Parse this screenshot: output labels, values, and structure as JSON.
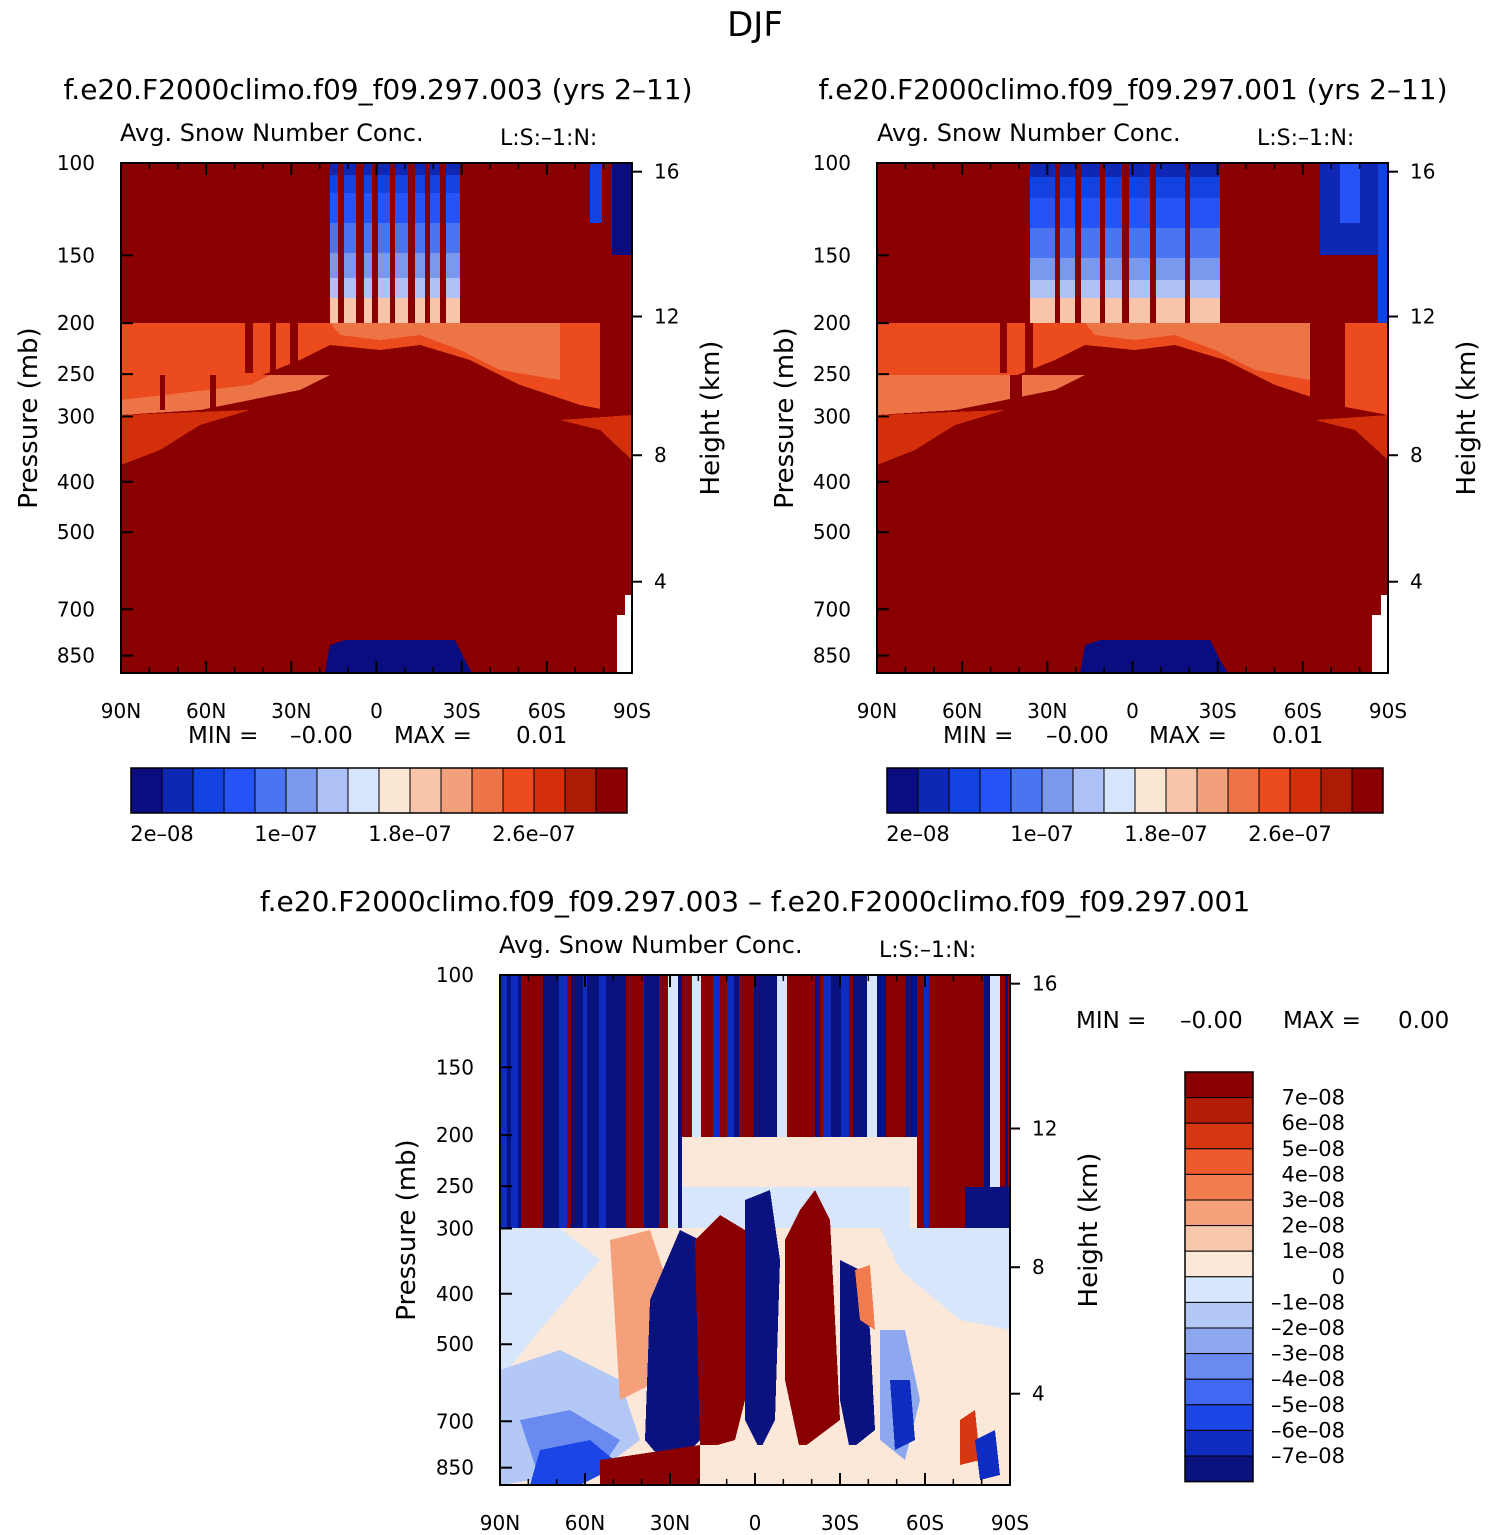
{
  "figure": {
    "season": "DJF"
  },
  "colors": {
    "abs_scale": [
      "#0a0d80",
      "#0e27b4",
      "#1242e0",
      "#2653f5",
      "#4a74f0",
      "#7a98ee",
      "#adc1f6",
      "#d6e5fb",
      "#fbe5d3",
      "#f8c5ab",
      "#f29f7c",
      "#ec7447",
      "#eb4b1d",
      "#d42f0b",
      "#ae1b05",
      "#8a0000"
    ],
    "diff_scale": [
      "#8a0000",
      "#b41d05",
      "#d63610",
      "#ed5a2b",
      "#f07c4f",
      "#f5a07b",
      "#f8c8ad",
      "#fbe8d8",
      "#d8e6fb",
      "#b4c8f5",
      "#8ea8ef",
      "#6a8af2",
      "#4168f3",
      "#1c45e5",
      "#0e2cc0",
      "#0a1280"
    ],
    "dark_red": "#8a0000",
    "dark_blue": "#0a0d80"
  },
  "chart_data": [
    {
      "type": "heatmap",
      "panel": "top-left",
      "case_title": "f.e20.F2000climo.f09_f09.297.003 (yrs 2–11)",
      "title": "Avg. Snow Number Conc.",
      "units": "L:S:–1:N:",
      "ylabel": "Pressure (mb)",
      "ylabel_right": "Height (km)",
      "x_ticks": [
        "90N",
        "60N",
        "30N",
        "0",
        "30S",
        "60S",
        "90S"
      ],
      "y_ticks": [
        "100",
        "150",
        "200",
        "250",
        "300",
        "400",
        "500",
        "700",
        "850"
      ],
      "y_ticks_right": [
        "16",
        "12",
        "8",
        "4"
      ],
      "stats": {
        "min_label": "MIN =",
        "min": "–0.00",
        "max_label": "MAX =",
        "max": "0.01"
      },
      "colorbar_labels": [
        "2e–08",
        "1e–07",
        "1.8e–07",
        "2.6e–07"
      ]
    },
    {
      "type": "heatmap",
      "panel": "top-right",
      "case_title": "f.e20.F2000climo.f09_f09.297.001 (yrs 2–11)",
      "title": "Avg. Snow Number Conc.",
      "units": "L:S:–1:N:",
      "ylabel": "Pressure (mb)",
      "ylabel_right": "Height (km)",
      "x_ticks": [
        "90N",
        "60N",
        "30N",
        "0",
        "30S",
        "60S",
        "90S"
      ],
      "y_ticks": [
        "100",
        "150",
        "200",
        "250",
        "300",
        "400",
        "500",
        "700",
        "850"
      ],
      "y_ticks_right": [
        "16",
        "12",
        "8",
        "4"
      ],
      "stats": {
        "min_label": "MIN =",
        "min": "–0.00",
        "max_label": "MAX =",
        "max": "0.01"
      },
      "colorbar_labels": [
        "2e–08",
        "1e–07",
        "1.8e–07",
        "2.6e–07"
      ]
    },
    {
      "type": "heatmap",
      "panel": "bottom",
      "case_title": "f.e20.F2000climo.f09_f09.297.003 – f.e20.F2000climo.f09_f09.297.001",
      "title": "Avg. Snow Number Conc.",
      "units": "L:S:–1:N:",
      "ylabel": "Pressure (mb)",
      "ylabel_right": "Height (km)",
      "x_ticks": [
        "90N",
        "60N",
        "30N",
        "0",
        "30S",
        "60S",
        "90S"
      ],
      "y_ticks": [
        "100",
        "150",
        "200",
        "250",
        "300",
        "400",
        "500",
        "700",
        "850"
      ],
      "y_ticks_right": [
        "16",
        "12",
        "8",
        "4"
      ],
      "stats": {
        "min_label": "MIN =",
        "min": "–0.00",
        "max_label": "MAX =",
        "max": "0.00"
      },
      "colorbar_labels": [
        "7e–08",
        "6e–08",
        "5e–08",
        "4e–08",
        "3e–08",
        "2e–08",
        "1e–08",
        "0",
        "–1e–08",
        "–2e–08",
        "–3e–08",
        "–4e–08",
        "–5e–08",
        "–6e–08",
        "–7e–08"
      ]
    }
  ]
}
